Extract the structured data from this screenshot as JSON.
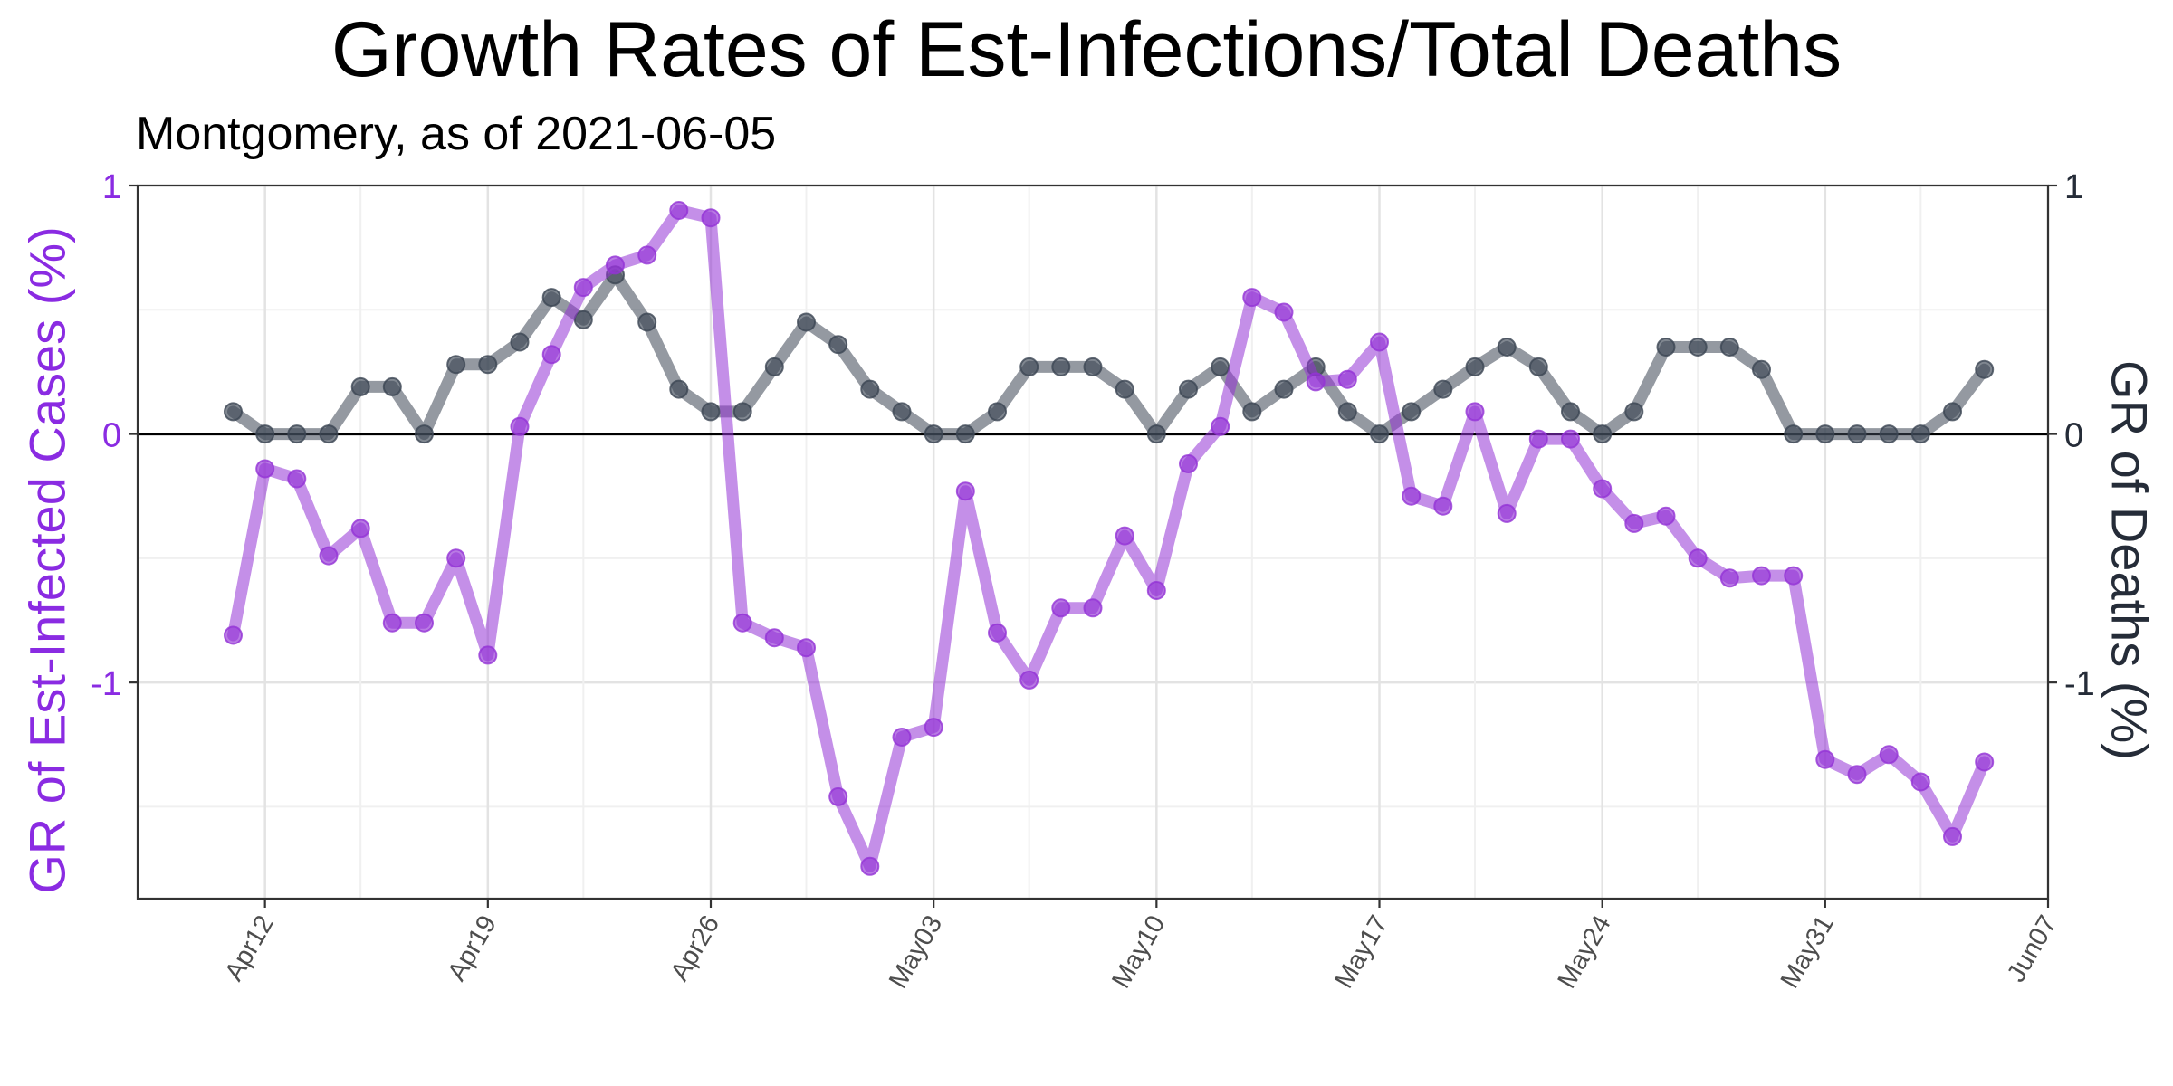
{
  "chart_data": {
    "type": "line",
    "title": "Growth Rates of Est-Infections/Total Deaths",
    "subtitle": "Montgomery, as of 2021-06-05",
    "ylabel_left": "GR of Est-Infected Cases (%)",
    "ylabel_right": "GR of Deaths (%)",
    "ylim": [
      -1.87,
      1.0
    ],
    "y_ticks": [
      1,
      0,
      -1
    ],
    "y_tick_labels": [
      "1",
      "0",
      "-1"
    ],
    "x_ticks": [
      "2021-04-12",
      "2021-04-19",
      "2021-04-26",
      "2021-05-03",
      "2021-05-10",
      "2021-05-17",
      "2021-05-24",
      "2021-05-31",
      "2021-06-07"
    ],
    "x_tick_labels": [
      "Apr12",
      "Apr19",
      "Apr26",
      "May03",
      "May10",
      "May17",
      "May24",
      "May31",
      "Jun07"
    ],
    "xlim": [
      "2021-04-08",
      "2021-06-07"
    ],
    "grid": true,
    "zero_line": true,
    "x": [
      "2021-04-11",
      "2021-04-12",
      "2021-04-13",
      "2021-04-14",
      "2021-04-15",
      "2021-04-16",
      "2021-04-17",
      "2021-04-18",
      "2021-04-19",
      "2021-04-20",
      "2021-04-21",
      "2021-04-22",
      "2021-04-23",
      "2021-04-24",
      "2021-04-25",
      "2021-04-26",
      "2021-04-27",
      "2021-04-28",
      "2021-04-29",
      "2021-04-30",
      "2021-05-01",
      "2021-05-02",
      "2021-05-03",
      "2021-05-04",
      "2021-05-05",
      "2021-05-06",
      "2021-05-07",
      "2021-05-08",
      "2021-05-09",
      "2021-05-10",
      "2021-05-11",
      "2021-05-12",
      "2021-05-13",
      "2021-05-14",
      "2021-05-15",
      "2021-05-16",
      "2021-05-17",
      "2021-05-18",
      "2021-05-19",
      "2021-05-20",
      "2021-05-21",
      "2021-05-22",
      "2021-05-23",
      "2021-05-24",
      "2021-05-25",
      "2021-05-26",
      "2021-05-27",
      "2021-05-28",
      "2021-05-29",
      "2021-05-30",
      "2021-05-31",
      "2021-06-01",
      "2021-06-02",
      "2021-06-03",
      "2021-06-04",
      "2021-06-05"
    ],
    "series": [
      {
        "color": "#9333d6",
        "values": [
          -0.81,
          -0.14,
          -0.18,
          -0.49,
          -0.38,
          -0.76,
          -0.76,
          -0.5,
          -0.89,
          0.03,
          0.32,
          0.59,
          0.68,
          0.72,
          0.9,
          0.87,
          -0.76,
          -0.82,
          -0.86,
          -1.46,
          -1.74,
          -1.22,
          -1.18,
          -0.23,
          -0.8,
          -0.99,
          -0.7,
          -0.7,
          -0.41,
          -0.63,
          -0.12,
          0.03,
          0.55,
          0.49,
          0.21,
          0.22,
          0.37,
          -0.25,
          -0.29,
          0.09,
          -0.32,
          -0.02,
          -0.02,
          -0.22,
          -0.36,
          -0.33,
          -0.5,
          -0.58,
          -0.57,
          -0.57,
          -1.31,
          -1.37,
          -1.29,
          -1.4,
          -1.62,
          -1.32
        ]
      },
      {
        "color": "#3c4654",
        "values": [
          0.09,
          0.0,
          0.0,
          0.0,
          0.19,
          0.19,
          0.0,
          0.28,
          0.28,
          0.37,
          0.55,
          0.46,
          0.64,
          0.45,
          0.18,
          0.09,
          0.09,
          0.27,
          0.45,
          0.36,
          0.18,
          0.09,
          0.0,
          0.0,
          0.09,
          0.27,
          0.27,
          0.27,
          0.18,
          0.0,
          0.18,
          0.27,
          0.09,
          0.18,
          0.27,
          0.09,
          0.0,
          0.09,
          0.18,
          0.27,
          0.35,
          0.27,
          0.09,
          0.0,
          0.09,
          0.35,
          0.35,
          0.35,
          0.26,
          0.0,
          0.0,
          0.0,
          0.0,
          0.0,
          0.09,
          0.26
        ]
      }
    ]
  }
}
